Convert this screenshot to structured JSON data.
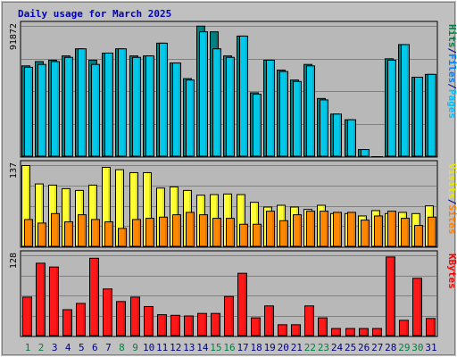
{
  "chart_data": {
    "type": "bar",
    "title": "Daily usage for March 2025",
    "categories": [
      "1",
      "2",
      "3",
      "4",
      "5",
      "6",
      "7",
      "8",
      "9",
      "10",
      "11",
      "12",
      "13",
      "14",
      "15",
      "16",
      "17",
      "18",
      "19",
      "20",
      "21",
      "22",
      "23",
      "24",
      "25",
      "26",
      "27",
      "28",
      "29",
      "30",
      "31"
    ],
    "weekend_days": [
      "1",
      "2",
      "8",
      "9",
      "15",
      "16",
      "22",
      "23",
      "29",
      "30"
    ],
    "panels": [
      {
        "id": "hits",
        "ymax_label": "91872",
        "ymax": 91872,
        "ylabel": [
          {
            "text": "Hits",
            "color": "#008040"
          },
          {
            "text": "/",
            "color": "#000080"
          },
          {
            "text": "Files",
            "color": "#0080ff"
          },
          {
            "text": "/",
            "color": "#000080"
          },
          {
            "text": "Pages",
            "color": "#00c0ff"
          }
        ],
        "series": [
          {
            "name": "Hits",
            "color": "#008080",
            "values": [
              64000,
              67000,
              68000,
              71000,
              76000,
              68000,
              73000,
              76000,
              71000,
              71000,
              80000,
              66000,
              55000,
              92000,
              88000,
              71000,
              85000,
              45000,
              68000,
              61000,
              54000,
              65000,
              41000,
              30000,
              26000,
              5000,
              0,
              69000,
              79000,
              56000,
              58000
            ]
          },
          {
            "name": "Files",
            "color": "#00c8e8",
            "values": [
              63000,
              65000,
              67000,
              70000,
              76000,
              65000,
              73000,
              76000,
              70000,
              71000,
              80000,
              66000,
              54000,
              88000,
              76000,
              70000,
              85000,
              44000,
              68000,
              60000,
              53000,
              64000,
              40000,
              30000,
              26000,
              5000,
              0,
              68000,
              79000,
              56000,
              58000
            ]
          }
        ]
      },
      {
        "id": "visits",
        "ymax_label": "137",
        "ymax": 137,
        "ylabel": [
          {
            "text": "Visits",
            "color": "#e8e800"
          },
          {
            "text": "/",
            "color": "#000080"
          },
          {
            "text": "Sites",
            "color": "#ff8000"
          }
        ],
        "series": [
          {
            "name": "Visits",
            "color": "#ffff33",
            "values": [
              137,
              106,
              104,
              98,
              95,
              104,
              134,
              130,
              125,
              125,
              99,
              101,
              95,
              87,
              88,
              89,
              88,
              75,
              67,
              70,
              67,
              63,
              70,
              56,
              56,
              52,
              61,
              56,
              58,
              56,
              69
            ]
          },
          {
            "name": "Sites",
            "color": "#ff8800",
            "values": [
              46,
              40,
              56,
              42,
              54,
              46,
              42,
              31,
              46,
              48,
              50,
              54,
              58,
              54,
              48,
              48,
              38,
              38,
              60,
              44,
              54,
              60,
              60,
              58,
              58,
              45,
              52,
              60,
              48,
              36,
              50
            ]
          }
        ]
      },
      {
        "id": "kbytes",
        "ymax_label": "128",
        "ymax": 128,
        "ylabel": [
          {
            "text": "KBytes",
            "color": "#ff0000"
          }
        ],
        "series": [
          {
            "name": "KBytes",
            "color": "#ff1818",
            "values": [
              62,
              116,
              110,
              42,
              52,
              124,
              75,
              55,
              62,
              47,
              34,
              33,
              32,
              36,
              36,
              63,
              100,
              29,
              48,
              18,
              18,
              48,
              29,
              12,
              12,
              12,
              12,
              126,
              25,
              92,
              28
            ]
          }
        ]
      }
    ]
  }
}
